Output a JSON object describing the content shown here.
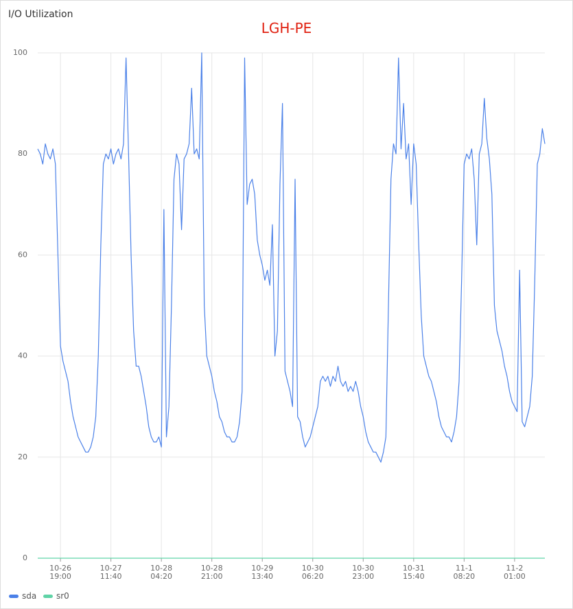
{
  "panel": {
    "title": "I/O Utilization"
  },
  "chart_data": {
    "type": "line",
    "title": "LGH-PE",
    "categories": [
      null,
      null,
      null,
      null,
      null,
      null,
      null,
      null,
      null,
      "10-26\n19:00",
      null,
      null,
      null,
      null,
      null,
      null,
      null,
      null,
      null,
      null,
      null,
      null,
      null,
      null,
      null,
      null,
      null,
      null,
      null,
      "10-27\n11:40",
      null,
      null,
      null,
      null,
      null,
      null,
      null,
      null,
      null,
      null,
      null,
      null,
      null,
      null,
      null,
      null,
      null,
      null,
      null,
      "10-28\n04:20",
      null,
      null,
      null,
      null,
      null,
      null,
      null,
      null,
      null,
      null,
      null,
      null,
      null,
      null,
      null,
      null,
      null,
      null,
      null,
      "10-28\n21:00",
      null,
      null,
      null,
      null,
      null,
      null,
      null,
      null,
      null,
      null,
      null,
      null,
      null,
      null,
      null,
      null,
      null,
      null,
      null,
      "10-29\n13:40",
      null,
      null,
      null,
      null,
      null,
      null,
      null,
      null,
      null,
      null,
      null,
      null,
      null,
      null,
      null,
      null,
      null,
      null,
      null,
      "10-30\n06:20",
      null,
      null,
      null,
      null,
      null,
      null,
      null,
      null,
      null,
      null,
      null,
      null,
      null,
      null,
      null,
      null,
      null,
      null,
      null,
      "10-30\n23:00",
      null,
      null,
      null,
      null,
      null,
      null,
      null,
      null,
      null,
      null,
      null,
      null,
      null,
      null,
      null,
      null,
      null,
      null,
      null,
      "10-31\n15:40",
      null,
      null,
      null,
      null,
      null,
      null,
      null,
      null,
      null,
      null,
      null,
      null,
      null,
      null,
      null,
      null,
      null,
      null,
      null,
      "11-1\n08:20",
      null,
      null,
      null,
      null,
      null,
      null,
      null,
      null,
      null,
      null,
      null,
      null,
      null,
      null,
      null,
      null,
      null,
      null,
      null,
      "11-2\n01:00",
      null,
      null,
      null,
      null,
      null,
      null,
      null,
      null,
      null,
      null,
      null,
      null
    ],
    "series": [
      {
        "name": "sda",
        "color": "#4a80e8",
        "values": [
          81,
          80,
          78,
          82,
          80,
          79,
          81,
          78,
          60,
          42,
          39,
          37,
          35,
          31,
          28,
          26,
          24,
          23,
          22,
          21,
          21,
          22,
          24,
          28,
          40,
          62,
          78,
          80,
          79,
          81,
          78,
          80,
          81,
          79,
          82,
          99,
          80,
          60,
          45,
          38,
          38,
          36,
          33,
          30,
          26,
          24,
          23,
          23,
          24,
          22,
          69,
          24,
          30,
          50,
          75,
          80,
          78,
          65,
          79,
          80,
          82,
          93,
          80,
          81,
          79,
          100,
          50,
          40,
          38,
          36,
          33,
          31,
          28,
          27,
          25,
          24,
          24,
          23,
          23,
          24,
          27,
          33,
          99,
          70,
          74,
          75,
          72,
          63,
          60,
          58,
          55,
          57,
          54,
          66,
          40,
          45,
          74,
          90,
          37,
          35,
          33,
          30,
          75,
          28,
          27,
          24,
          22,
          23,
          24,
          26,
          28,
          30,
          35,
          36,
          35,
          36,
          34,
          36,
          35,
          38,
          35,
          34,
          35,
          33,
          34,
          33,
          35,
          33,
          30,
          28,
          25,
          23,
          22,
          21,
          21,
          20,
          19,
          21,
          24,
          50,
          75,
          82,
          80,
          99,
          81,
          90,
          79,
          82,
          70,
          82,
          78,
          62,
          48,
          40,
          38,
          36,
          35,
          33,
          31,
          28,
          26,
          25,
          24,
          24,
          23,
          25,
          28,
          35,
          55,
          78,
          80,
          79,
          81,
          75,
          62,
          80,
          82,
          91,
          83,
          79,
          72,
          50,
          45,
          43,
          41,
          38,
          36,
          33,
          31,
          30,
          29,
          57,
          27,
          26,
          28,
          30,
          36,
          55,
          78,
          80,
          85,
          82
        ]
      },
      {
        "name": "sr0",
        "color": "#5fd3a6",
        "values": [
          0,
          0,
          0,
          0,
          0,
          0,
          0,
          0,
          0,
          0,
          0,
          0,
          0,
          0,
          0,
          0,
          0,
          0,
          0,
          0,
          0,
          0,
          0,
          0,
          0,
          0,
          0,
          0,
          0,
          0,
          0,
          0,
          0,
          0,
          0,
          0,
          0,
          0,
          0,
          0,
          0,
          0,
          0,
          0,
          0,
          0,
          0,
          0,
          0,
          0,
          0,
          0,
          0,
          0,
          0,
          0,
          0,
          0,
          0,
          0,
          0,
          0,
          0,
          0,
          0,
          0,
          0,
          0,
          0,
          0,
          0,
          0,
          0,
          0,
          0,
          0,
          0,
          0,
          0,
          0,
          0,
          0,
          0,
          0,
          0,
          0,
          0,
          0,
          0,
          0,
          0,
          0,
          0,
          0,
          0,
          0,
          0,
          0,
          0,
          0,
          0,
          0,
          0,
          0,
          0,
          0,
          0,
          0,
          0,
          0,
          0,
          0,
          0,
          0,
          0,
          0,
          0,
          0,
          0,
          0,
          0,
          0,
          0,
          0,
          0,
          0,
          0,
          0,
          0,
          0,
          0,
          0,
          0,
          0,
          0,
          0,
          0,
          0,
          0,
          0,
          0,
          0,
          0,
          0,
          0,
          0,
          0,
          0,
          0,
          0,
          0,
          0,
          0,
          0,
          0,
          0,
          0,
          0,
          0,
          0,
          0,
          0,
          0,
          0,
          0,
          0,
          0,
          0,
          0,
          0,
          0,
          0,
          0,
          0,
          0,
          0,
          0,
          0,
          0,
          0,
          0,
          0,
          0,
          0,
          0,
          0,
          0,
          0,
          0,
          0,
          0,
          0,
          0,
          0,
          0,
          0,
          0,
          0,
          0,
          0,
          0,
          0
        ]
      }
    ],
    "ylim": [
      0,
      100
    ],
    "yticks": [
      0,
      20,
      40,
      60,
      80,
      100
    ],
    "grid": true,
    "legend": "bottom-left"
  }
}
